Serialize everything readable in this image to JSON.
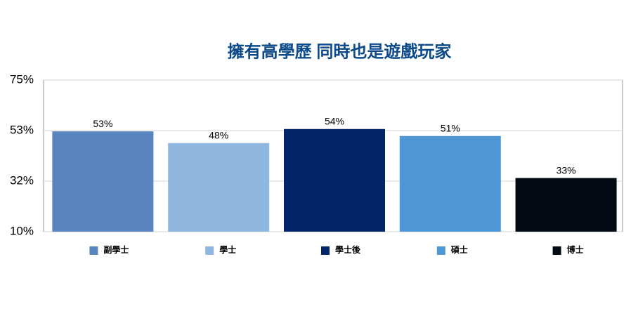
{
  "chart_data": {
    "type": "bar",
    "title": "擁有高學歷 同時也是遊戲玩家",
    "categories": [
      "副學士",
      "學士",
      "學士後",
      "碩士",
      "博士"
    ],
    "values": [
      53,
      48,
      54,
      51,
      33
    ],
    "value_labels": [
      "53%",
      "48%",
      "54%",
      "51%",
      "33%"
    ],
    "colors": [
      "#5a86c0",
      "#8fb7e0",
      "#022569",
      "#4d97d7",
      "#030a13"
    ],
    "ylim": [
      10,
      75
    ],
    "yticks": [
      {
        "value": 10,
        "label": "10%"
      },
      {
        "value": 31.67,
        "label": "32%"
      },
      {
        "value": 53.33,
        "label": "53%"
      },
      {
        "value": 75,
        "label": "75%"
      }
    ],
    "grid": true,
    "legend": "bottom"
  }
}
